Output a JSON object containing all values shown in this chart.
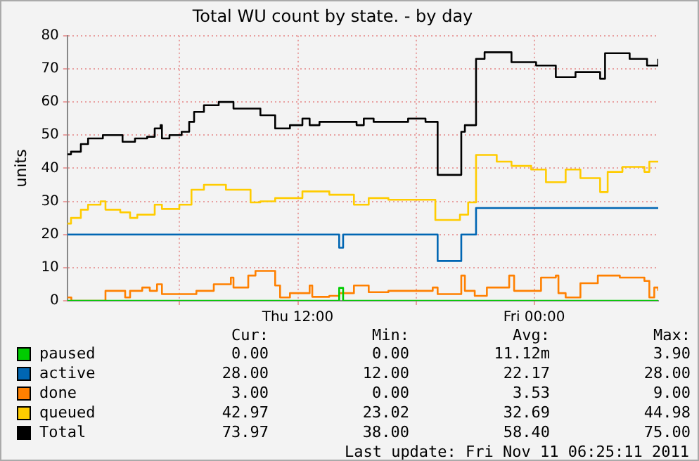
{
  "chart_data": {
    "type": "step",
    "title": "Total WU count by state. - by day",
    "ylabel": "units",
    "xlim": [
      "2011-11-10T00:18",
      "2011-11-11T06:18"
    ],
    "xticks": [
      {
        "value": "2011-11-10T06:00",
        "label": null
      },
      {
        "value": "2011-11-10T12:00",
        "label": "Thu 12:00"
      },
      {
        "value": "2011-11-10T18:00",
        "label": null
      },
      {
        "value": "2011-11-11T00:00",
        "label": "Fri 00:00"
      }
    ],
    "ylim": [
      0,
      80
    ],
    "yticks": [
      0,
      10,
      20,
      30,
      40,
      50,
      60,
      70,
      80
    ],
    "grid": true,
    "legend": "bottom",
    "series": [
      {
        "name": "paused",
        "color": "#00cc00",
        "x": [
          "2011-11-10T00:18",
          "2011-11-10T14:06",
          "2011-11-10T14:18",
          "2011-11-11T06:18"
        ],
        "values": [
          0,
          3.9,
          0,
          0
        ]
      },
      {
        "name": "active",
        "color": "#0066b3",
        "x": [
          "2011-11-10T00:18",
          "2011-11-10T14:06",
          "2011-11-10T14:18",
          "2011-11-10T19:06",
          "2011-11-10T20:18",
          "2011-11-10T21:03",
          "2011-11-11T06:18"
        ],
        "values": [
          20,
          16,
          20,
          12,
          20,
          28,
          28
        ]
      },
      {
        "name": "done",
        "color": "#ff8000",
        "x": [
          "2011-11-10T00:18",
          "2011-11-10T00:30",
          "2011-11-10T02:14",
          "2011-11-10T03:14",
          "2011-11-10T03:29",
          "2011-11-10T04:06",
          "2011-11-10T04:29",
          "2011-11-10T04:51",
          "2011-11-10T05:06",
          "2011-11-10T06:51",
          "2011-11-10T07:44",
          "2011-11-10T08:36",
          "2011-11-10T08:44",
          "2011-11-10T09:29",
          "2011-11-10T09:51",
          "2011-11-10T10:51",
          "2011-11-10T11:06",
          "2011-11-10T11:36",
          "2011-11-10T12:36",
          "2011-11-10T12:44",
          "2011-11-10T13:36",
          "2011-11-10T14:06",
          "2011-11-10T14:51",
          "2011-11-10T15:36",
          "2011-11-10T16:36",
          "2011-11-10T18:51",
          "2011-11-10T19:06",
          "2011-11-10T20:18",
          "2011-11-10T20:29",
          "2011-11-10T20:59",
          "2011-11-10T21:36",
          "2011-11-10T22:44",
          "2011-11-10T22:59",
          "2011-11-11T00:21",
          "2011-11-11T01:06",
          "2011-11-11T01:14",
          "2011-11-11T01:36",
          "2011-11-11T02:21",
          "2011-11-11T03:14",
          "2011-11-11T04:21",
          "2011-11-11T05:36",
          "2011-11-11T05:51",
          "2011-11-11T06:06",
          "2011-11-11T06:18"
        ],
        "values": [
          1,
          0,
          3,
          1,
          3,
          4,
          3,
          5,
          2,
          3,
          5,
          7,
          4,
          7.6,
          9,
          4.6,
          1,
          2.3,
          4.6,
          1.2,
          1.5,
          2.3,
          4.6,
          2.6,
          3,
          4,
          2,
          7.6,
          3,
          1.5,
          4,
          7.6,
          3,
          7,
          7.6,
          2.3,
          1,
          5.3,
          7.6,
          7,
          6,
          1,
          4,
          3
        ]
      },
      {
        "name": "queued",
        "color": "#ffcc00",
        "x": [
          "2011-11-10T00:18",
          "2011-11-10T00:29",
          "2011-11-10T00:59",
          "2011-11-10T01:21",
          "2011-11-10T01:59",
          "2011-11-10T02:14",
          "2011-11-10T02:59",
          "2011-11-10T03:29",
          "2011-11-10T03:51",
          "2011-11-10T04:44",
          "2011-11-10T05:06",
          "2011-11-10T05:59",
          "2011-11-10T06:36",
          "2011-11-10T07:14",
          "2011-11-10T08:21",
          "2011-11-10T09:36",
          "2011-11-10T10:06",
          "2011-11-10T10:51",
          "2011-11-10T12:14",
          "2011-11-10T13:36",
          "2011-11-10T14:51",
          "2011-11-10T15:36",
          "2011-11-10T16:36",
          "2011-11-10T18:59",
          "2011-11-10T20:14",
          "2011-11-10T20:39",
          "2011-11-10T21:03",
          "2011-11-10T22:06",
          "2011-11-10T22:51",
          "2011-11-10T23:51",
          "2011-11-11T00:36",
          "2011-11-11T01:36",
          "2011-11-11T02:21",
          "2011-11-11T03:21",
          "2011-11-11T03:44",
          "2011-11-11T04:29",
          "2011-11-11T05:36",
          "2011-11-11T05:51",
          "2011-11-11T06:18"
        ],
        "values": [
          23.3,
          25,
          27.5,
          29,
          30,
          27.5,
          26.7,
          25,
          26,
          29,
          27.7,
          29,
          33.5,
          35,
          33.5,
          29.7,
          30,
          31,
          33,
          32,
          29,
          31,
          30.5,
          24.4,
          26,
          29.7,
          44,
          42,
          40.7,
          39.6,
          35.8,
          39.6,
          37,
          32.8,
          38.9,
          40.4,
          38.9,
          42,
          42
        ]
      },
      {
        "name": "Total",
        "color": "#000000",
        "x": [
          "2011-11-10T00:18",
          "2011-11-10T00:29",
          "2011-11-10T00:59",
          "2011-11-10T01:21",
          "2011-11-10T02:06",
          "2011-11-10T03:06",
          "2011-11-10T03:44",
          "2011-11-10T04:21",
          "2011-11-10T04:44",
          "2011-11-10T05:02",
          "2011-11-10T05:06",
          "2011-11-10T05:29",
          "2011-11-10T06:06",
          "2011-11-10T06:29",
          "2011-11-10T06:44",
          "2011-11-10T07:14",
          "2011-11-10T07:59",
          "2011-11-10T08:44",
          "2011-11-10T10:06",
          "2011-11-10T10:51",
          "2011-11-10T11:36",
          "2011-11-10T12:14",
          "2011-11-10T12:36",
          "2011-11-10T13:06",
          "2011-11-10T14:59",
          "2011-11-10T15:21",
          "2011-11-10T15:51",
          "2011-11-10T17:36",
          "2011-11-10T18:29",
          "2011-11-10T19:06",
          "2011-11-10T20:18",
          "2011-11-10T20:29",
          "2011-11-10T21:03",
          "2011-11-10T21:29",
          "2011-11-10T22:51",
          "2011-11-11T00:06",
          "2011-11-11T01:06",
          "2011-11-11T02:06",
          "2011-11-11T03:21",
          "2011-11-11T03:36",
          "2011-11-11T04:51",
          "2011-11-11T05:44",
          "2011-11-11T06:18"
        ],
        "values": [
          44.2,
          45,
          47.3,
          49,
          50,
          48,
          49,
          49.5,
          52,
          53,
          49,
          50,
          51,
          54,
          57,
          59,
          60,
          58,
          56,
          52,
          53,
          55,
          53,
          54,
          53,
          55,
          54,
          55,
          54,
          38,
          51,
          53,
          73,
          75,
          72,
          71,
          67.5,
          69,
          67,
          74.7,
          73,
          71,
          73
        ]
      }
    ],
    "annotations": [
      "Cur:",
      "Min:",
      "Avg:",
      "Max:",
      "0.00",
      "0.00",
      "11.12m",
      "3.90",
      "28.00",
      "12.00",
      "22.17",
      "28.00",
      "3.00",
      "0.00",
      "3.53",
      "9.00",
      "42.97",
      "23.02",
      "32.69",
      "44.98",
      "73.97",
      "38.00",
      "58.40",
      "75.00",
      "Last update: Fri Nov 11 06:25:11 2011"
    ]
  }
}
